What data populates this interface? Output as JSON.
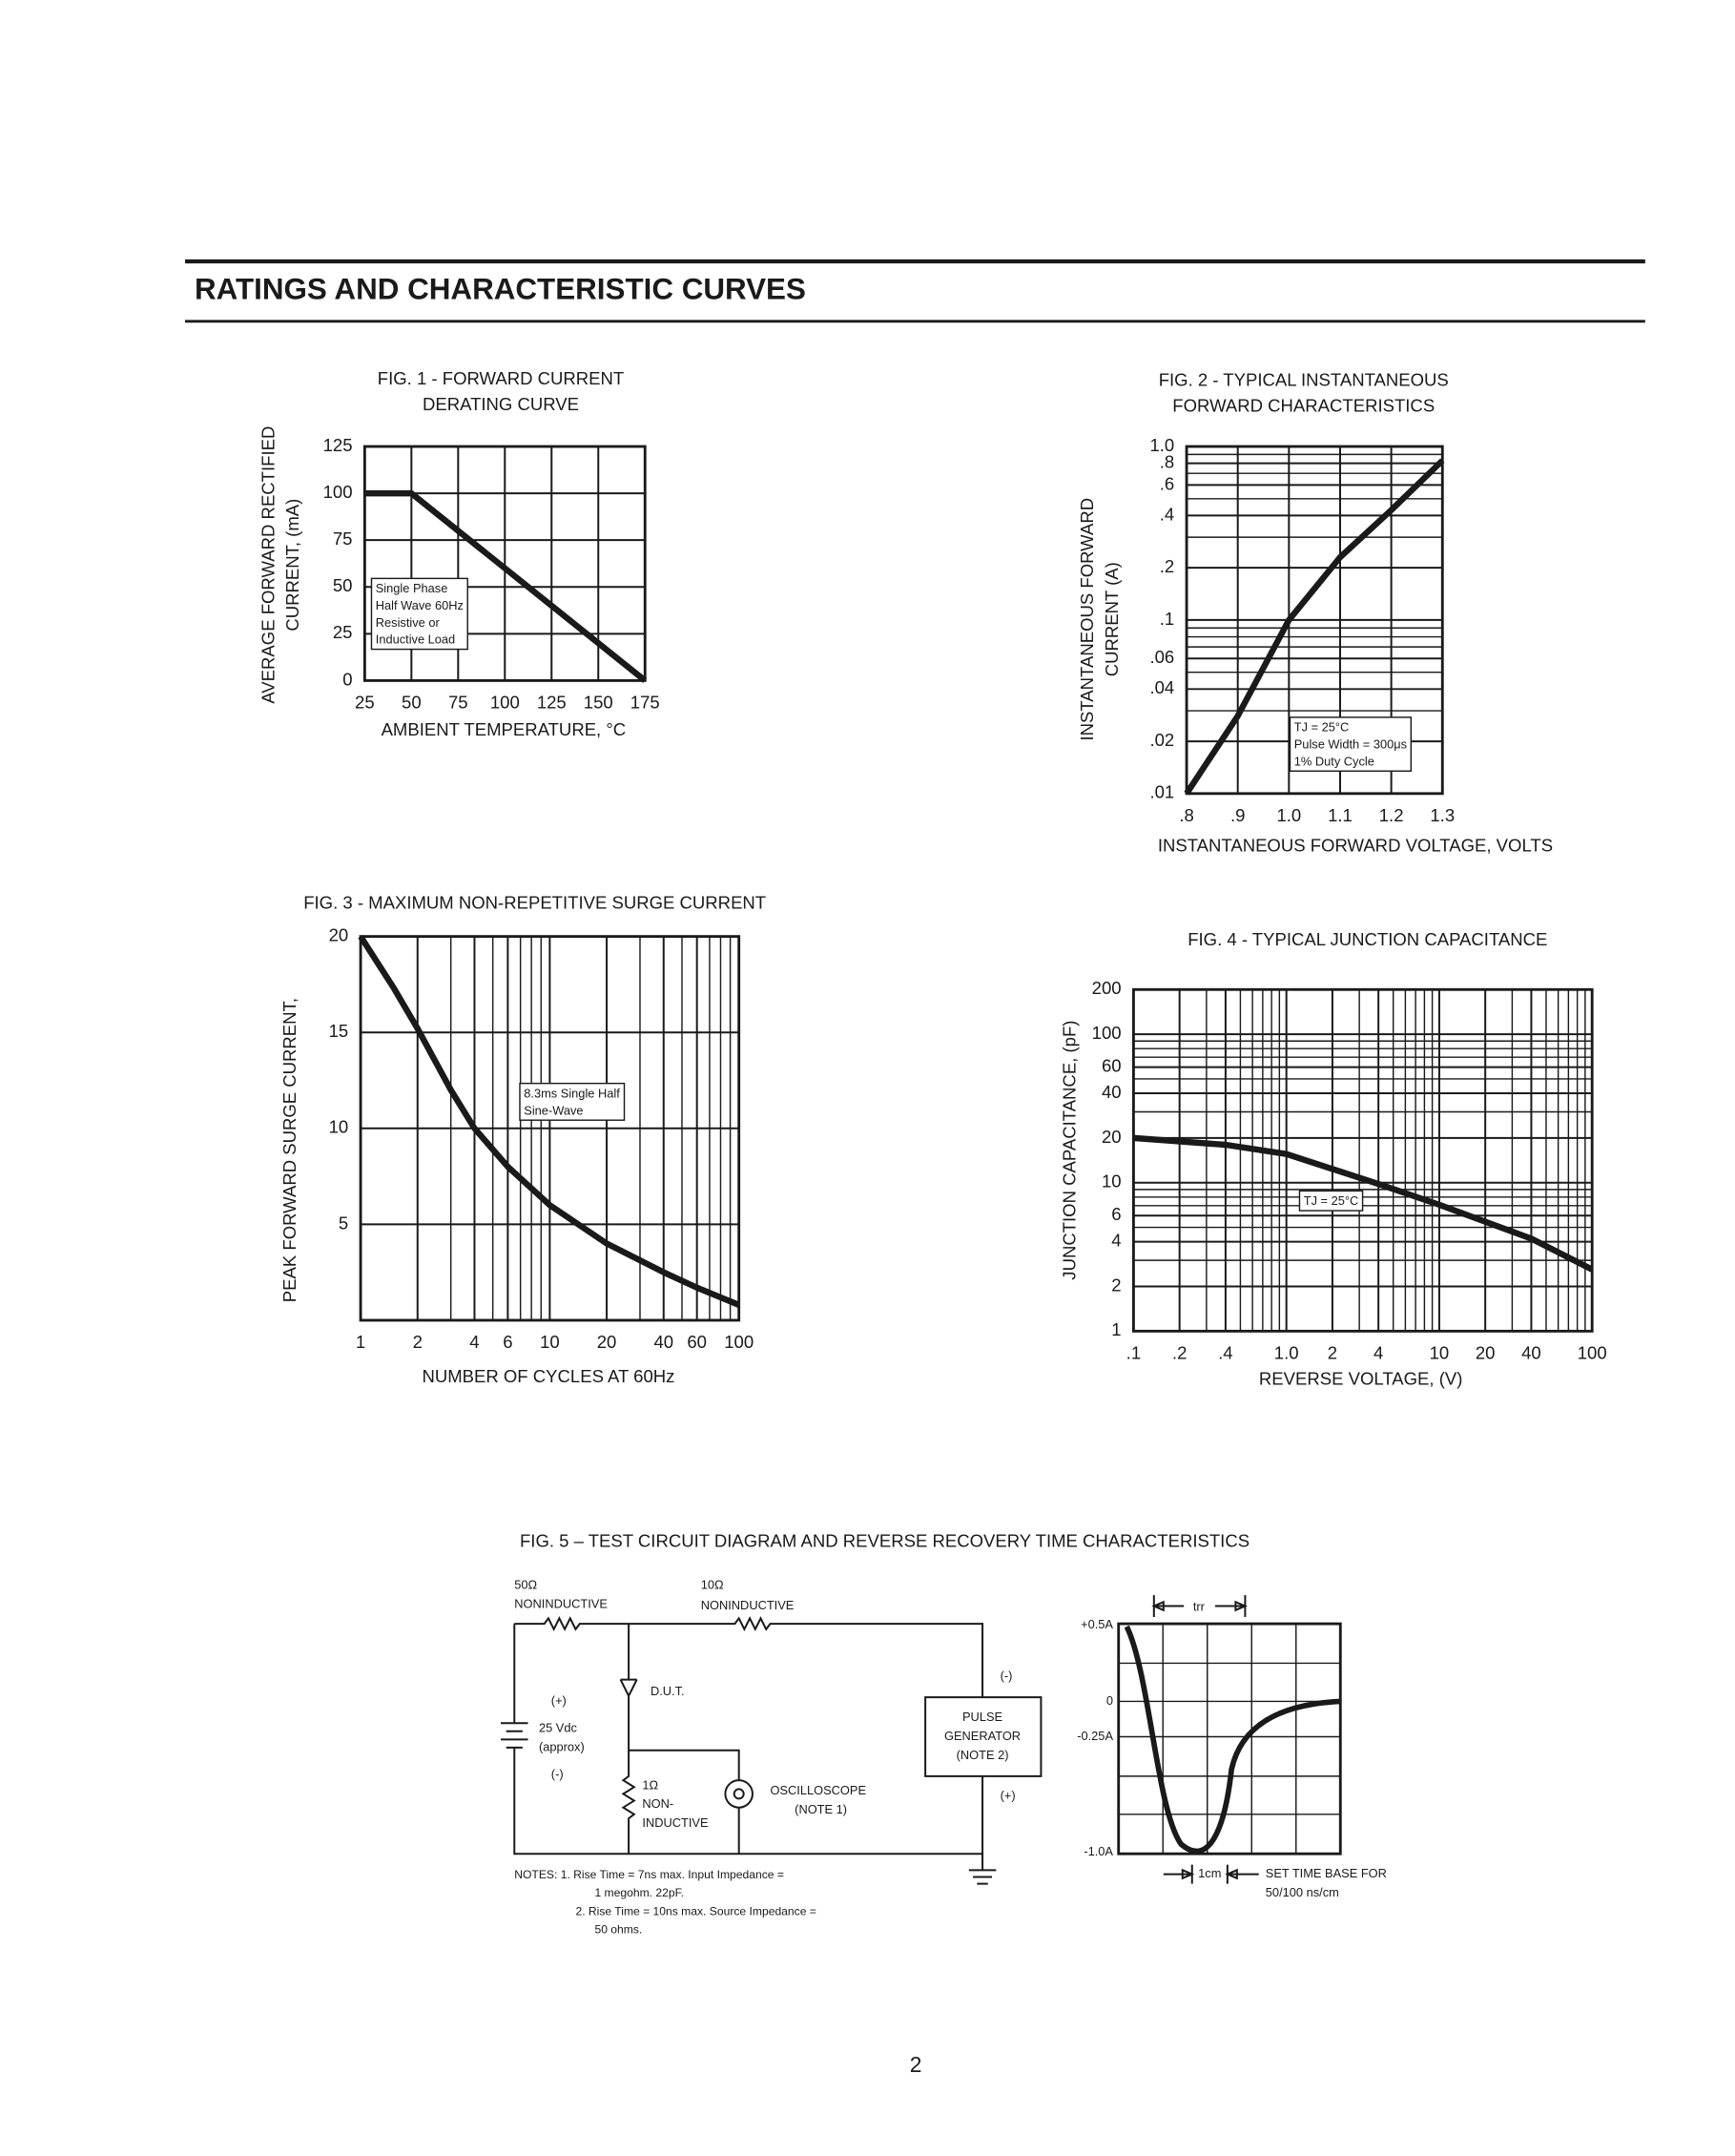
{
  "header": {
    "title": "RATINGS AND CHARACTERISTIC CURVES"
  },
  "chart_data": [
    {
      "type": "line",
      "title": [
        "FIG. 1 - FORWARD CURRENT",
        "DERATING CURVE"
      ],
      "xlabel": [
        "AMBIENT TEMPERATURE, °C"
      ],
      "ylabel": [
        "AVERAGE FORWARD RECTIFIED",
        "CURRENT, (mA)"
      ],
      "annotation": [
        "Single Phase",
        "Half Wave 60Hz",
        "Resistive or",
        "Inductive Load"
      ],
      "x": [
        25,
        50,
        175
      ],
      "values": [
        100,
        100,
        0
      ],
      "color": "#1a1a1a",
      "xlim": [
        25,
        175
      ],
      "ylim": [
        0,
        125
      ],
      "xscale": "linear",
      "yscale": "linear",
      "xticks": [
        25,
        50,
        75,
        100,
        125,
        150,
        175
      ],
      "yticks": [
        0,
        25,
        50,
        75,
        100,
        125
      ],
      "grid": true
    },
    {
      "type": "line",
      "title": [
        "FIG. 2 - TYPICAL INSTANTANEOUS",
        "FORWARD CHARACTERISTICS"
      ],
      "xlabel": [
        "INSTANTANEOUS FORWARD VOLTAGE, VOLTS"
      ],
      "ylabel": [
        "INSTANTANEOUS FORWARD",
        "CURRENT (A)"
      ],
      "annotation": [
        "TJ = 25°C",
        "Pulse Width = 300μs",
        "1% Duty Cycle"
      ],
      "x": [
        0.8,
        0.9,
        1.0,
        1.1,
        1.2,
        1.3
      ],
      "values": [
        0.01,
        0.028,
        0.1,
        0.23,
        0.43,
        0.83
      ],
      "color": "#1a1a1a",
      "xlim": [
        0.8,
        1.3
      ],
      "ylim": [
        0.01,
        1
      ],
      "xscale": "linear",
      "yscale": "log",
      "xticks": [
        {
          "value": 0.8,
          "label": ".8"
        },
        {
          "value": 0.9,
          "label": ".9"
        },
        {
          "value": 1,
          "label": "1.0"
        },
        1.1,
        1.2,
        1.3
      ],
      "yticks": [
        {
          "value": 1,
          "label": "1.0"
        },
        {
          "value": 0.8,
          "label": ".8"
        },
        {
          "value": 0.6,
          "label": ".6"
        },
        {
          "value": 0.4,
          "label": ".4"
        },
        {
          "value": 0.2,
          "label": ".2"
        },
        {
          "value": 0.1,
          "label": ".1"
        },
        {
          "value": 0.06,
          "label": ".06"
        },
        {
          "value": 0.04,
          "label": ".04"
        },
        {
          "value": 0.02,
          "label": ".02"
        },
        {
          "value": 0.01,
          "label": ".01"
        }
      ],
      "yminor": [
        0.03,
        0.05,
        0.07,
        0.08,
        0.09,
        0.3,
        0.5,
        0.7,
        0.9
      ],
      "grid": true
    },
    {
      "type": "line",
      "title": [
        "FIG. 3 - MAXIMUM NON-REPETITIVE SURGE CURRENT"
      ],
      "xlabel": [
        "NUMBER OF CYCLES AT 60Hz"
      ],
      "ylabel": [
        "PEAK FORWARD SURGE CURRENT,"
      ],
      "annotation": [
        "8.3ms Single Half",
        "Sine-Wave"
      ],
      "x": [
        1,
        1.5,
        2,
        3,
        4,
        6,
        10,
        20,
        40,
        60,
        100
      ],
      "values": [
        20,
        17.3,
        15.2,
        12,
        10,
        8,
        6,
        4,
        2.5,
        1.7,
        0.8
      ],
      "color": "#1a1a1a",
      "xlim": [
        1,
        100
      ],
      "ylim": [
        0,
        20
      ],
      "xscale": "log",
      "yscale": "linear",
      "xticks": [
        1,
        2,
        4,
        6,
        10,
        20,
        40,
        60,
        100
      ],
      "yticks": [
        5,
        10,
        15,
        20
      ],
      "xminor": [
        3,
        5,
        7,
        8,
        9,
        30,
        50,
        70,
        80,
        90
      ],
      "grid": true
    },
    {
      "type": "line",
      "title": [
        "FIG. 4 - TYPICAL JUNCTION CAPACITANCE"
      ],
      "xlabel": [
        "REVERSE VOLTAGE, (V)"
      ],
      "ylabel": [
        "JUNCTION CAPACITANCE, (pF)"
      ],
      "annotation": [
        "TJ = 25°C"
      ],
      "x": [
        0.1,
        0.4,
        1,
        4,
        10,
        40,
        100
      ],
      "values": [
        20,
        18,
        15.6,
        9.8,
        7.1,
        4.2,
        2.6
      ],
      "color": "#1a1a1a",
      "xlim": [
        0.1,
        100
      ],
      "ylim": [
        1,
        200
      ],
      "xscale": "log",
      "yscale": "log",
      "xticks": [
        {
          "value": 0.1,
          "label": ".1"
        },
        {
          "value": 0.2,
          "label": ".2"
        },
        {
          "value": 0.4,
          "label": ".4"
        },
        {
          "value": 1,
          "label": "1.0"
        },
        2,
        4,
        10,
        20,
        40,
        100
      ],
      "yticks": [
        200,
        100,
        60,
        40,
        20,
        10,
        6,
        4,
        2,
        1
      ],
      "xminor": [
        0.3,
        0.5,
        0.6,
        0.7,
        0.8,
        0.9,
        3,
        5,
        6,
        7,
        8,
        9,
        30,
        50,
        60,
        70,
        80,
        90
      ],
      "yminor": [
        3,
        5,
        7,
        8,
        9,
        30,
        50,
        70,
        80,
        90
      ],
      "grid": true
    }
  ],
  "fig5": {
    "title": "FIG. 5 – TEST CIRCUIT DIAGRAM AND REVERSE RECOVERY TIME CHARACTERISTICS",
    "circuit": {
      "r1": "50Ω",
      "r1_type": "NONINDUCTIVE",
      "r2": "10Ω",
      "r2_type": "NONINDUCTIVE",
      "dut": "D.U.T.",
      "bat_plus": "(+)",
      "bat_value": "25 Vdc",
      "bat_approx": "(approx)",
      "bat_minus": "(-)",
      "r3": "1Ω",
      "r3_type": [
        "NON-",
        "INDUCTIVE"
      ],
      "scope": "OSCILLOSCOPE",
      "scope_note": "(NOTE 1)",
      "gen": [
        "PULSE",
        "GENERATOR",
        "(NOTE 2)"
      ],
      "gen_minus": "(-)",
      "gen_plus": "(+)"
    },
    "notes": [
      "NOTES: 1. Rise Time = 7ns max. Input Impedance =",
      "1 megohm. 22pF.",
      "2. Rise Time = 10ns max. Source Impedance =",
      "50 ohms."
    ],
    "waveform": {
      "trr": "trr",
      "levels": [
        "+0.5A",
        "0",
        "-0.25A",
        "-1.0A"
      ],
      "cm": "1cm",
      "timebase": [
        "SET TIME BASE FOR",
        "50/100 ns/cm"
      ]
    }
  },
  "page_number": "2"
}
